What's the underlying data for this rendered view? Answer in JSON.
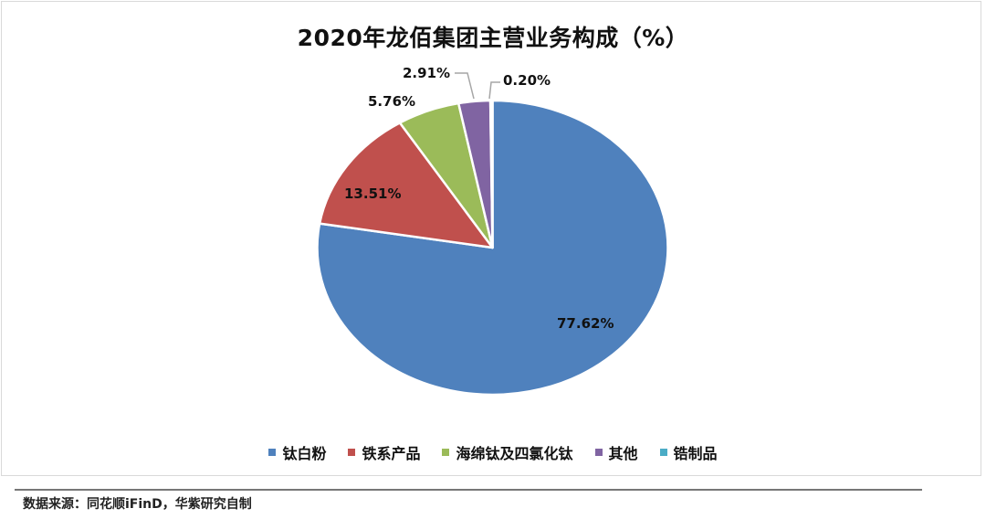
{
  "chart_data": {
    "type": "pie",
    "title": "2020年龙佰集团主营业务构成（%）",
    "categories": [
      "钛白粉",
      "铁系产品",
      "海绵钛及四氯化钛",
      "其他",
      "锆制品"
    ],
    "values": [
      77.62,
      13.51,
      5.76,
      2.91,
      0.2
    ],
    "labels": [
      "77.62%",
      "13.51%",
      "5.76%",
      "2.91%",
      "0.20%"
    ],
    "colors": [
      "#4F81BD",
      "#C0504D",
      "#9BBB59",
      "#8064A2",
      "#4BACC6"
    ],
    "legend_position": "bottom",
    "start_angle": "12 o'clock, clockwise"
  },
  "title": "2020年龙佰集团主营业务构成（%）",
  "legend": [
    {
      "label": "钛白粉",
      "color": "#4F81BD"
    },
    {
      "label": "铁系产品",
      "color": "#C0504D"
    },
    {
      "label": "海绵钛及四氯化钛",
      "color": "#9BBB59"
    },
    {
      "label": "其他",
      "color": "#8064A2"
    },
    {
      "label": "锆制品",
      "color": "#4BACC6"
    }
  ],
  "source": "数据来源：同花顺iFinD，华紫研究自制"
}
